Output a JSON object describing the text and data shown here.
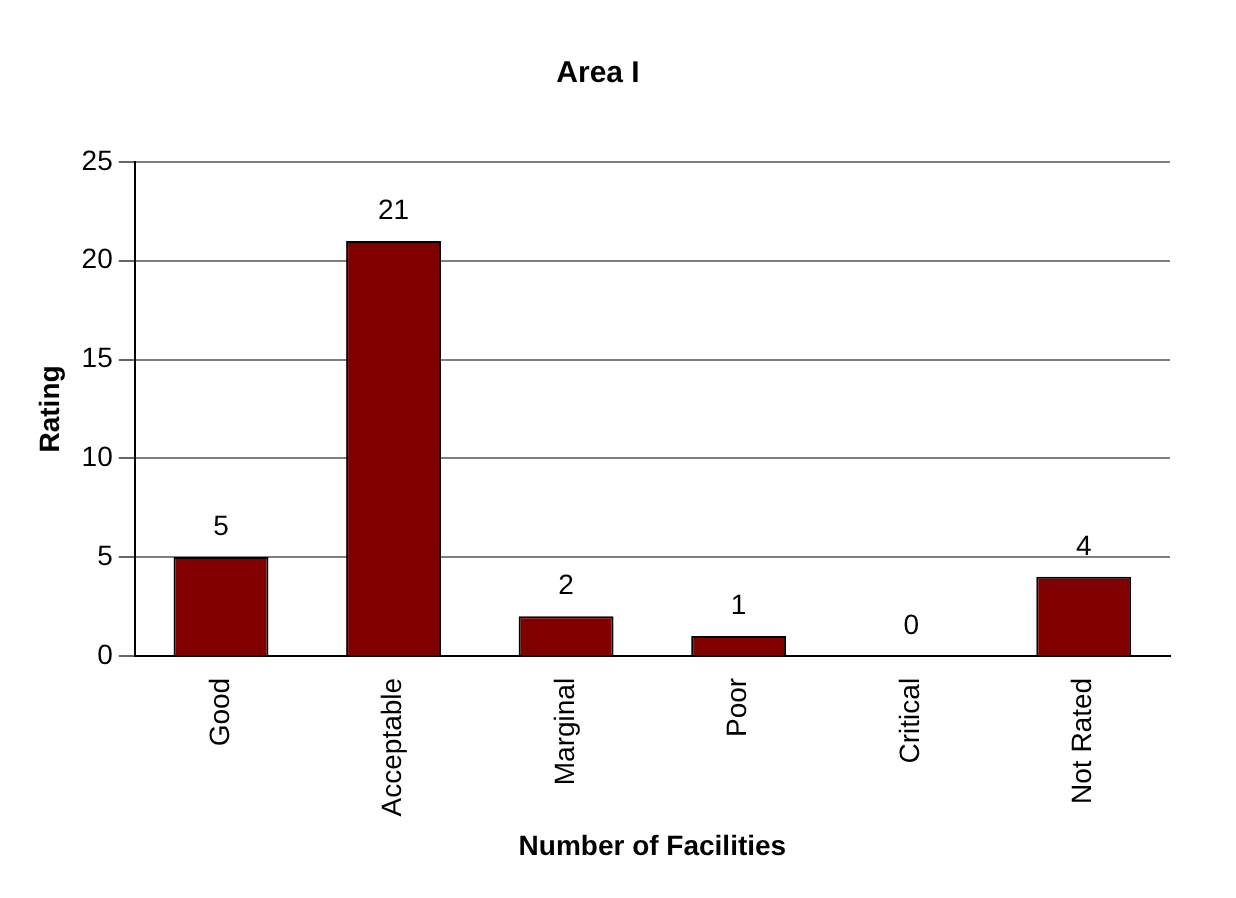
{
  "chart_data": {
    "type": "bar",
    "title": "Area I",
    "xlabel": "Number of Facilities",
    "ylabel": "Rating",
    "categories": [
      "Good",
      "Acceptable",
      "Marginal",
      "Poor",
      "Critical",
      "Not Rated"
    ],
    "values": [
      5,
      21,
      2,
      1,
      0,
      4
    ],
    "color": "#800000",
    "ylim": [
      0,
      25
    ],
    "yticks": [
      0,
      5,
      10,
      15,
      20,
      25
    ],
    "grid": "y",
    "data_labels": true,
    "legend": false
  }
}
